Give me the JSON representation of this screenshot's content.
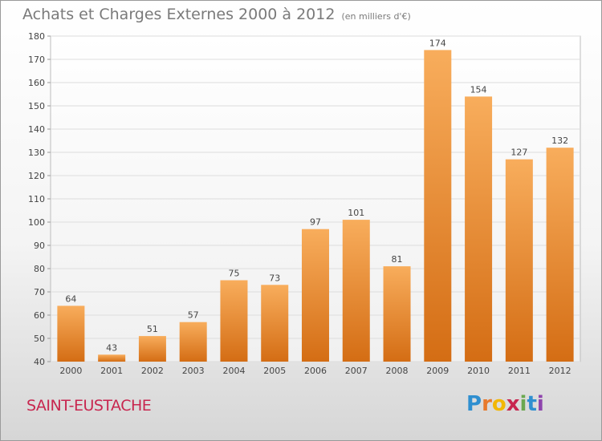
{
  "title": "Achats et Charges Externes 2000 à 2012",
  "unit_note": "(en milliers d'€)",
  "commune": "SAINT-EUSTACHE",
  "logo": {
    "text": "Proxiti",
    "letters": [
      "P",
      "r",
      "o",
      "x",
      "i",
      "t",
      "i"
    ]
  },
  "colors": {
    "bar_top": "#f8ad5c",
    "bar_bottom": "#d46d14",
    "commune_text": "#c8264f",
    "grid": "#dddddd"
  },
  "chart_data": {
    "type": "bar",
    "title": "Achats et Charges Externes 2000 à 2012",
    "subtitle": "(en milliers d'€)",
    "categories": [
      "2000",
      "2001",
      "2002",
      "2003",
      "2004",
      "2005",
      "2006",
      "2007",
      "2008",
      "2009",
      "2010",
      "2011",
      "2012"
    ],
    "values": [
      64,
      43,
      51,
      57,
      75,
      73,
      97,
      101,
      81,
      174,
      154,
      127,
      132
    ],
    "ylim": [
      40,
      180
    ],
    "yticks": [
      40,
      50,
      60,
      70,
      80,
      90,
      100,
      110,
      120,
      130,
      140,
      150,
      160,
      170,
      180
    ],
    "grid": true,
    "data_labels": true
  }
}
